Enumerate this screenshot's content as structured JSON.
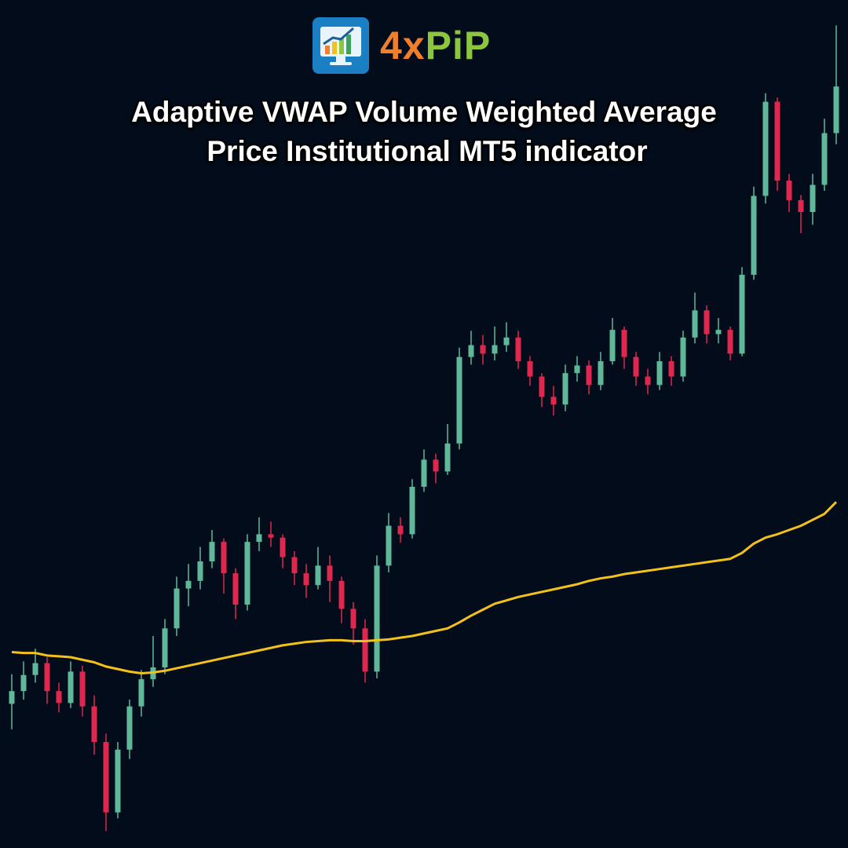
{
  "header": {
    "brand_prefix": "4x",
    "brand_suffix": "PiP",
    "title_lines": [
      "Adaptive VWAP Volume Weighted Average",
      "Price Institutional MT5 indicator"
    ]
  },
  "chart_data": {
    "type": "candlestick",
    "up_color": "#5fb89a",
    "down_color": "#e0284f",
    "ylim": [
      0,
      100
    ],
    "open": [
      17.0,
      18.5,
      20.4,
      21.8,
      18.5,
      17.1,
      20.8,
      16.7,
      12.5,
      4.2,
      11.6,
      16.7,
      19.9,
      21.3,
      25.9,
      30.6,
      31.5,
      33.8,
      36.1,
      32.4,
      28.7,
      36.1,
      37.0,
      36.6,
      34.3,
      32.4,
      31.0,
      33.3,
      31.5,
      28.2,
      25.9,
      20.8,
      33.3,
      38.0,
      37.0,
      42.6,
      45.8,
      44.4,
      47.7,
      57.9,
      59.3,
      58.3,
      59.3,
      60.2,
      57.4,
      55.6,
      53.2,
      52.3,
      56.0,
      56.9,
      54.6,
      57.4,
      61.1,
      57.9,
      55.6,
      54.6,
      57.4,
      55.6,
      60.2,
      63.4,
      60.6,
      61.1,
      58.3,
      67.6,
      76.9,
      88.0,
      78.7,
      76.4,
      75.0,
      78.2,
      84.3
    ],
    "high": [
      20.5,
      22.0,
      23.5,
      22.5,
      19.5,
      22.0,
      21.5,
      18.0,
      13.5,
      12.5,
      17.5,
      21.0,
      25.0,
      27.0,
      32.0,
      33.5,
      35.5,
      37.5,
      36.5,
      33.0,
      37.0,
      39.0,
      38.5,
      37.0,
      35.0,
      33.5,
      35.5,
      34.5,
      32.0,
      29.0,
      27.0,
      34.5,
      39.5,
      39.0,
      43.5,
      47.0,
      46.5,
      50.0,
      59.0,
      61.0,
      60.5,
      61.5,
      62.0,
      61.0,
      58.0,
      56.0,
      54.5,
      57.0,
      58.0,
      57.5,
      58.5,
      62.5,
      61.5,
      58.5,
      56.5,
      58.5,
      58.0,
      61.0,
      65.5,
      64.0,
      62.5,
      61.5,
      68.5,
      78.0,
      89.0,
      88.5,
      79.5,
      77.0,
      79.5,
      86.0,
      97.0
    ],
    "low": [
      14.0,
      17.5,
      19.5,
      17.0,
      16.0,
      16.5,
      15.5,
      11.0,
      2.0,
      3.5,
      10.5,
      15.5,
      19.0,
      20.5,
      25.0,
      28.5,
      30.5,
      33.0,
      30.0,
      27.0,
      28.0,
      35.0,
      35.5,
      33.0,
      31.0,
      29.5,
      30.5,
      29.0,
      26.5,
      24.0,
      19.5,
      20.0,
      32.5,
      36.0,
      36.5,
      42.0,
      43.0,
      44.0,
      47.0,
      57.0,
      57.0,
      57.5,
      58.5,
      56.5,
      54.5,
      52.0,
      51.0,
      51.5,
      55.0,
      53.5,
      54.0,
      57.0,
      56.5,
      54.5,
      53.5,
      54.0,
      54.5,
      55.0,
      59.5,
      59.5,
      59.5,
      57.5,
      58.0,
      67.0,
      76.0,
      77.5,
      75.0,
      72.5,
      73.5,
      77.5,
      83.0
    ],
    "close": [
      18.5,
      20.4,
      21.8,
      18.5,
      17.1,
      20.8,
      16.7,
      12.5,
      4.2,
      11.6,
      16.7,
      19.9,
      21.3,
      25.9,
      30.6,
      31.5,
      33.8,
      36.1,
      32.4,
      28.7,
      36.1,
      37.0,
      36.6,
      34.3,
      32.4,
      31.0,
      33.3,
      31.5,
      28.2,
      25.9,
      20.8,
      33.3,
      38.0,
      37.0,
      42.6,
      45.8,
      44.4,
      47.7,
      57.9,
      59.3,
      58.3,
      59.3,
      60.2,
      57.4,
      55.6,
      53.2,
      52.3,
      56.0,
      56.9,
      54.6,
      57.4,
      61.1,
      57.9,
      55.6,
      54.6,
      57.4,
      55.6,
      60.2,
      63.4,
      60.6,
      61.1,
      58.3,
      67.6,
      76.9,
      88.0,
      78.7,
      76.4,
      75.0,
      78.2,
      84.3,
      89.8
    ],
    "vwap": {
      "color": "#f2c21b",
      "values": [
        23.1,
        23.0,
        23.0,
        22.7,
        22.6,
        22.5,
        22.2,
        21.9,
        21.4,
        21.1,
        20.8,
        20.6,
        20.7,
        20.9,
        21.2,
        21.5,
        21.8,
        22.1,
        22.4,
        22.7,
        23.0,
        23.3,
        23.6,
        23.9,
        24.1,
        24.3,
        24.4,
        24.5,
        24.5,
        24.4,
        24.4,
        24.5,
        24.6,
        24.8,
        25.0,
        25.3,
        25.6,
        25.9,
        26.6,
        27.4,
        28.1,
        28.8,
        29.2,
        29.6,
        29.9,
        30.2,
        30.5,
        30.8,
        31.1,
        31.5,
        31.8,
        32.0,
        32.3,
        32.5,
        32.7,
        32.9,
        33.1,
        33.3,
        33.5,
        33.7,
        33.9,
        34.1,
        34.8,
        35.9,
        36.6,
        37.0,
        37.5,
        38.0,
        38.7,
        39.4,
        40.8
      ]
    }
  }
}
